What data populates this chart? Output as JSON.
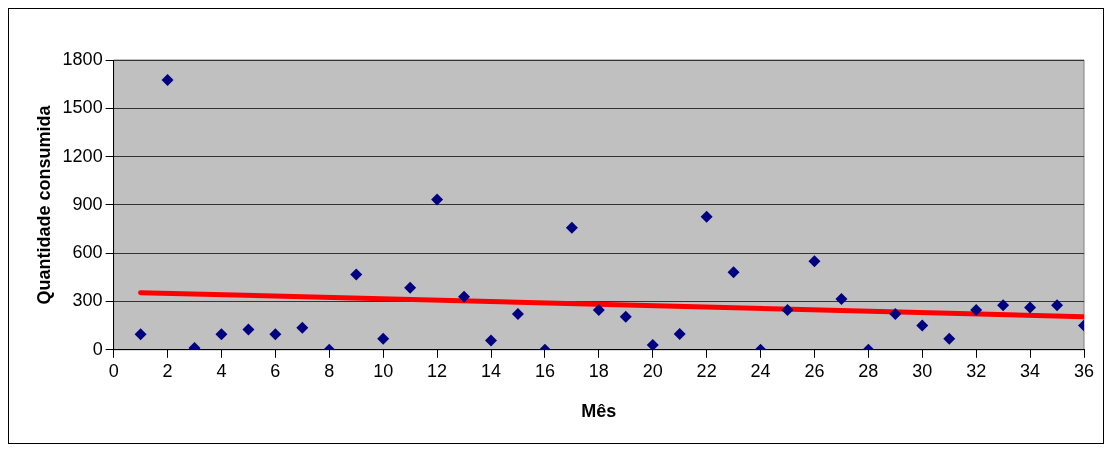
{
  "chart_data": {
    "type": "scatter",
    "xlabel": "Mês",
    "ylabel": "Quantidade consumida",
    "xlim": [
      0,
      36
    ],
    "xticks": [
      0,
      2,
      4,
      6,
      8,
      10,
      12,
      14,
      16,
      18,
      20,
      22,
      24,
      26,
      28,
      30,
      32,
      34,
      36
    ],
    "ylim": [
      0,
      1800
    ],
    "yticks": [
      0,
      300,
      600,
      900,
      1200,
      1500,
      1800
    ],
    "grid": "y",
    "legend": false,
    "marker": "diamond",
    "series": [
      {
        "type": "scatter",
        "color": "#000080",
        "x": [
          1,
          2,
          3,
          4,
          5,
          6,
          7,
          8,
          9,
          10,
          11,
          12,
          13,
          14,
          15,
          16,
          17,
          18,
          19,
          20,
          21,
          22,
          23,
          24,
          25,
          26,
          27,
          28,
          29,
          30,
          31,
          32,
          33,
          34,
          35,
          36
        ],
        "values": [
          96,
          1676,
          11,
          96,
          126,
          96,
          137,
          0,
          467,
          69,
          385,
          934,
          330,
          57,
          222,
          0,
          758,
          247,
          206,
          30,
          98,
          827,
          481,
          0,
          247,
          550,
          316,
          0,
          222,
          151,
          69,
          247,
          277,
          263,
          277,
          151
        ]
      },
      {
        "type": "line",
        "color": "#ff0000",
        "marker": "none",
        "x": [
          1,
          36
        ],
        "values": [
          355,
          206
        ]
      }
    ]
  }
}
